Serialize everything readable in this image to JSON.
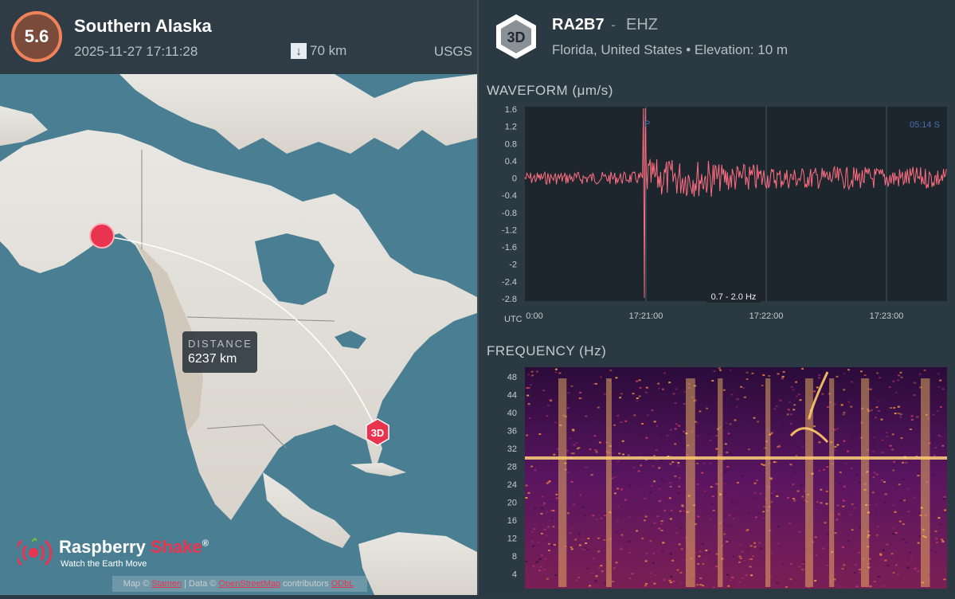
{
  "event": {
    "magnitude": "5.6",
    "region": "Southern Alaska",
    "datetime": "2025-11-27 17:11:28",
    "depth": "70 km",
    "source": "USGS",
    "mag_color": "#f0825a"
  },
  "map": {
    "distance_label": "DISTANCE",
    "distance_value": "6237 km",
    "station_marker": "3D",
    "logo_main": "Raspberry",
    "logo_accent": "Shake",
    "logo_reg": "®",
    "logo_tagline": "Watch the Earth Move",
    "attribution": {
      "prefix": "Map ©",
      "map_link": "Stamen",
      "data_prefix": "| Data ©",
      "data_link": "OpenStreetMap",
      "suffix": "contributors",
      "extra_link": "ODbL"
    }
  },
  "station": {
    "badge": "3D",
    "code": "RA2B7",
    "separator": "-",
    "channel": "EHZ",
    "location": "Florida, United States • Elevation: 10 m"
  },
  "waveform": {
    "label": "WAVEFORM (μm/s)",
    "y_ticks": [
      "1.6",
      "1.2",
      "0.8",
      "0.4",
      "0",
      "-0.4",
      "-0.8",
      "-1.2",
      "-1.6",
      "-2",
      "-2.4",
      "-2.8"
    ],
    "x_ticks": [
      "0:00",
      "17:21:00",
      "17:22:00",
      "17:23:00"
    ],
    "utc_label": "UTC",
    "p_marker": "P",
    "s_marker": "05:14  S",
    "filter": "0.7 - 2.0 Hz",
    "line_color": "#ff6e82"
  },
  "frequency": {
    "label": "FREQUENCY (Hz)",
    "y_ticks": [
      "48",
      "44",
      "40",
      "36",
      "32",
      "28",
      "24",
      "20",
      "16",
      "12",
      "8",
      "4"
    ]
  }
}
